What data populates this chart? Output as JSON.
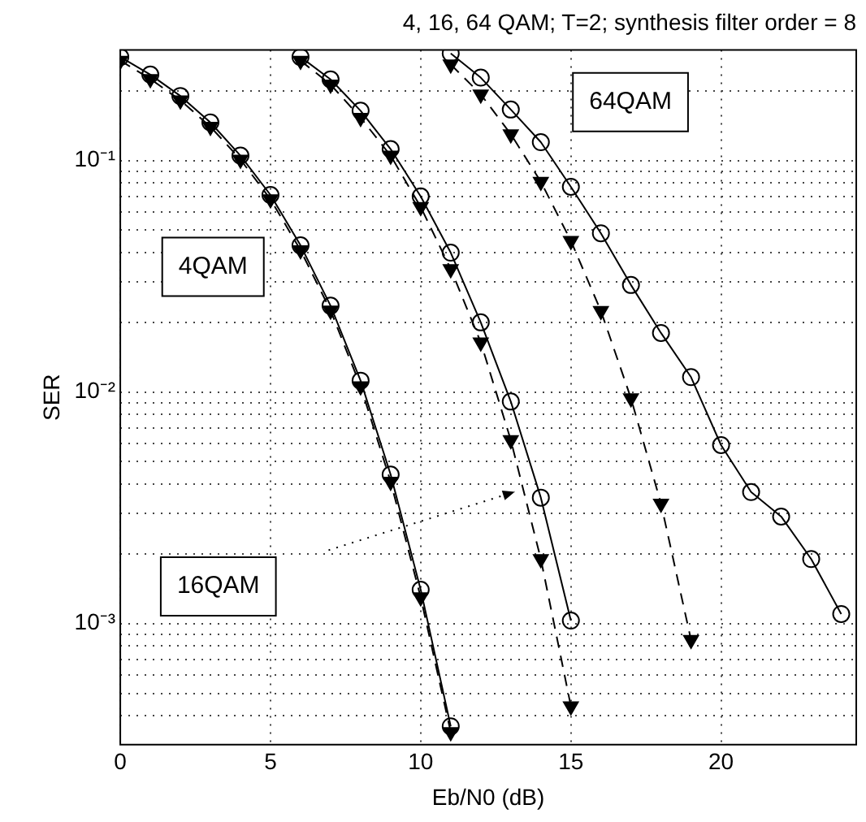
{
  "chart_data": {
    "type": "line",
    "title": "4, 16, 64 QAM; T=2; synthesis filter order = 8",
    "xlabel": "Eb/N0 (dB)",
    "ylabel": "SER",
    "log": "y",
    "grid": true,
    "legend": false,
    "xlim": [
      0,
      24.5
    ],
    "xticks": [
      0,
      5,
      10,
      15,
      20
    ],
    "ylim": [
      0.0003,
      0.3
    ],
    "yticks": [
      {
        "value": 0.0004,
        "label": null
      },
      {
        "value": 0.0005,
        "label": null
      },
      {
        "value": 0.0006,
        "label": null
      },
      {
        "value": 0.0007,
        "label": null
      },
      {
        "value": 0.0008,
        "label": null
      },
      {
        "value": 0.0009,
        "label": null
      },
      {
        "value": 0.001,
        "label": "10⁻³"
      },
      {
        "value": 0.002,
        "label": null
      },
      {
        "value": 0.003,
        "label": null
      },
      {
        "value": 0.004,
        "label": null
      },
      {
        "value": 0.005,
        "label": null
      },
      {
        "value": 0.006,
        "label": null
      },
      {
        "value": 0.007,
        "label": null
      },
      {
        "value": 0.008,
        "label": null
      },
      {
        "value": 0.009,
        "label": null
      },
      {
        "value": 0.01,
        "label": "10⁻²"
      },
      {
        "value": 0.02,
        "label": null
      },
      {
        "value": 0.03,
        "label": null
      },
      {
        "value": 0.04,
        "label": null
      },
      {
        "value": 0.05,
        "label": null
      },
      {
        "value": 0.06,
        "label": null
      },
      {
        "value": 0.07,
        "label": null
      },
      {
        "value": 0.08,
        "label": null
      },
      {
        "value": 0.09,
        "label": null
      },
      {
        "value": 0.1,
        "label": "10⁻¹"
      },
      {
        "value": 0.2,
        "label": null
      }
    ],
    "annotations": [
      "4QAM",
      "64QAM",
      "16QAM"
    ],
    "series": [
      {
        "color": "#000000",
        "marker": "circle",
        "line_style": "solid",
        "x": [
          0,
          1,
          2,
          3,
          4,
          5,
          6,
          7,
          8,
          9,
          10,
          11
        ],
        "values": [
          0.28,
          0.235,
          0.19,
          0.146,
          0.105,
          0.071,
          0.043,
          0.0236,
          0.0112,
          0.0044,
          0.0014,
          0.00036
        ]
      },
      {
        "color": "#000000",
        "marker": "triangle",
        "line_style": "dashed",
        "x": [
          0,
          1,
          2,
          3,
          4,
          5,
          6,
          7,
          8,
          9,
          10,
          11
        ],
        "values": [
          0.27,
          0.225,
          0.182,
          0.14,
          0.101,
          0.068,
          0.041,
          0.0225,
          0.0106,
          0.0041,
          0.0013,
          0.00034
        ]
      },
      {
        "color": "#000000",
        "marker": "circle",
        "line_style": "solid",
        "x": [
          6,
          7,
          8,
          9,
          10,
          11,
          12,
          13,
          14,
          15
        ],
        "values": [
          0.28,
          0.224,
          0.164,
          0.112,
          0.07,
          0.04,
          0.02,
          0.0091,
          0.0035,
          0.00103
        ]
      },
      {
        "color": "#000000",
        "marker": "triangle",
        "line_style": "dashed",
        "x": [
          6,
          7,
          8,
          9,
          10,
          11,
          12,
          13,
          14,
          15
        ],
        "values": [
          0.27,
          0.213,
          0.153,
          0.105,
          0.063,
          0.034,
          0.0164,
          0.0062,
          0.0019,
          0.00044
        ]
      },
      {
        "color": "#000000",
        "marker": "circle",
        "line_style": "solid",
        "x": [
          11,
          12,
          13,
          14,
          15,
          16,
          17,
          18,
          19,
          20,
          21,
          22,
          23,
          24
        ],
        "values": [
          0.29,
          0.228,
          0.166,
          0.12,
          0.077,
          0.0485,
          0.029,
          0.018,
          0.0116,
          0.0059,
          0.0037,
          0.0029,
          0.0019,
          0.0011
        ]
      },
      {
        "color": "#000000",
        "marker": "triangle",
        "line_style": "dashed",
        "x": [
          11,
          12,
          13,
          14,
          15,
          16,
          17,
          18,
          19
        ],
        "values": [
          0.26,
          0.193,
          0.13,
          0.081,
          0.045,
          0.0224,
          0.0094,
          0.0033,
          0.00085
        ]
      }
    ]
  }
}
